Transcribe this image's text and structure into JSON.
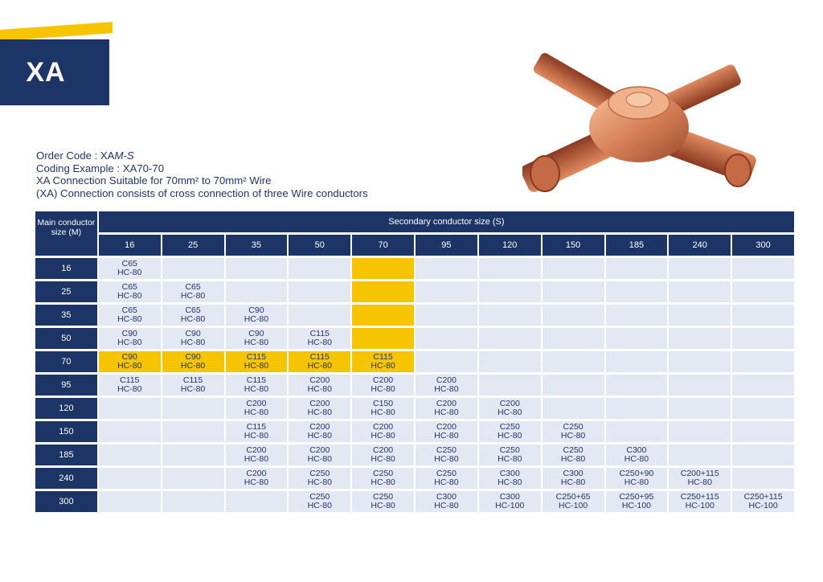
{
  "badge": {
    "label": "XA"
  },
  "info": {
    "order_code_prefix": "Order Code : XA",
    "order_code_suffix": "M-S",
    "coding_example": "Coding Example : XA70-70",
    "suitable": "XA Connection Suitable for 70mm² to 70mm² Wire",
    "description": "(XA) Connection consists of cross connection of three Wire conductors"
  },
  "table": {
    "main_header": "Main conductor size (M)",
    "secondary_header": "Secondary conductor size (S)",
    "columns": [
      "16",
      "25",
      "35",
      "50",
      "70",
      "95",
      "120",
      "150",
      "185",
      "240",
      "300"
    ],
    "highlight_color": "#f6c400",
    "rows": [
      {
        "label": "16",
        "cells": [
          [
            "C65",
            "HC-80"
          ],
          null,
          null,
          null,
          null,
          null,
          null,
          null,
          null,
          null,
          null
        ],
        "highlight": [
          4
        ]
      },
      {
        "label": "25",
        "cells": [
          [
            "C65",
            "HC-80"
          ],
          [
            "C65",
            "HC-80"
          ],
          null,
          null,
          null,
          null,
          null,
          null,
          null,
          null,
          null
        ],
        "highlight": [
          4
        ]
      },
      {
        "label": "35",
        "cells": [
          [
            "C65",
            "HC-80"
          ],
          [
            "C65",
            "HC-80"
          ],
          [
            "C90",
            "HC-80"
          ],
          null,
          null,
          null,
          null,
          null,
          null,
          null,
          null
        ],
        "highlight": [
          4
        ]
      },
      {
        "label": "50",
        "cells": [
          [
            "C90",
            "HC-80"
          ],
          [
            "C90",
            "HC-80"
          ],
          [
            "C90",
            "HC-80"
          ],
          [
            "C115",
            "HC-80"
          ],
          null,
          null,
          null,
          null,
          null,
          null,
          null
        ],
        "highlight": [
          4
        ]
      },
      {
        "label": "70",
        "cells": [
          [
            "C90",
            "HC-80"
          ],
          [
            "C90",
            "HC-80"
          ],
          [
            "C115",
            "HC-80"
          ],
          [
            "C115",
            "HC-80"
          ],
          [
            "C115",
            "HC-80"
          ],
          null,
          null,
          null,
          null,
          null,
          null
        ],
        "highlight": [
          0,
          1,
          2,
          3,
          4
        ]
      },
      {
        "label": "95",
        "cells": [
          [
            "C115",
            "HC-80"
          ],
          [
            "C115",
            "HC-80"
          ],
          [
            "C115",
            "HC-80"
          ],
          [
            "C200",
            "HC-80"
          ],
          [
            "C200",
            "HC-80"
          ],
          [
            "C200",
            "HC-80"
          ],
          null,
          null,
          null,
          null,
          null
        ],
        "highlight": []
      },
      {
        "label": "120",
        "cells": [
          null,
          null,
          [
            "C200",
            "HC-80"
          ],
          [
            "C200",
            "HC-80"
          ],
          [
            "C150",
            "HC-80"
          ],
          [
            "C200",
            "HC-80"
          ],
          [
            "C200",
            "HC-80"
          ],
          null,
          null,
          null,
          null
        ],
        "highlight": []
      },
      {
        "label": "150",
        "cells": [
          null,
          null,
          [
            "C115",
            "HC-80"
          ],
          [
            "C200",
            "HC-80"
          ],
          [
            "C200",
            "HC-80"
          ],
          [
            "C200",
            "HC-80"
          ],
          [
            "C250",
            "HC-80"
          ],
          [
            "C250",
            "HC-80"
          ],
          null,
          null,
          null
        ],
        "highlight": []
      },
      {
        "label": "185",
        "cells": [
          null,
          null,
          [
            "C200",
            "HC-80"
          ],
          [
            "C200",
            "HC-80"
          ],
          [
            "C200",
            "HC-80"
          ],
          [
            "C250",
            "HC-80"
          ],
          [
            "C250",
            "HC-80"
          ],
          [
            "C250",
            "HC-80"
          ],
          [
            "C300",
            "HC-80"
          ],
          null,
          null
        ],
        "highlight": []
      },
      {
        "label": "240",
        "cells": [
          null,
          null,
          [
            "C200",
            "HC-80"
          ],
          [
            "C250",
            "HC-80"
          ],
          [
            "C250",
            "HC-80"
          ],
          [
            "C250",
            "HC-80"
          ],
          [
            "C300",
            "HC-80"
          ],
          [
            "C300",
            "HC-80"
          ],
          [
            "C250+90",
            "HC-80"
          ],
          [
            "C200+115",
            "HC-80"
          ],
          null
        ],
        "highlight": []
      },
      {
        "label": "300",
        "cells": [
          null,
          null,
          null,
          [
            "C250",
            "HC-80"
          ],
          [
            "C250",
            "HC-80"
          ],
          [
            "C300",
            "HC-80"
          ],
          [
            "C300",
            "HC-100"
          ],
          [
            "C250+65",
            "HC-100"
          ],
          [
            "C250+95",
            "HC-100"
          ],
          [
            "C250+115",
            "HC-100"
          ],
          [
            "C250+115",
            "HC-100"
          ]
        ],
        "highlight": []
      }
    ]
  }
}
